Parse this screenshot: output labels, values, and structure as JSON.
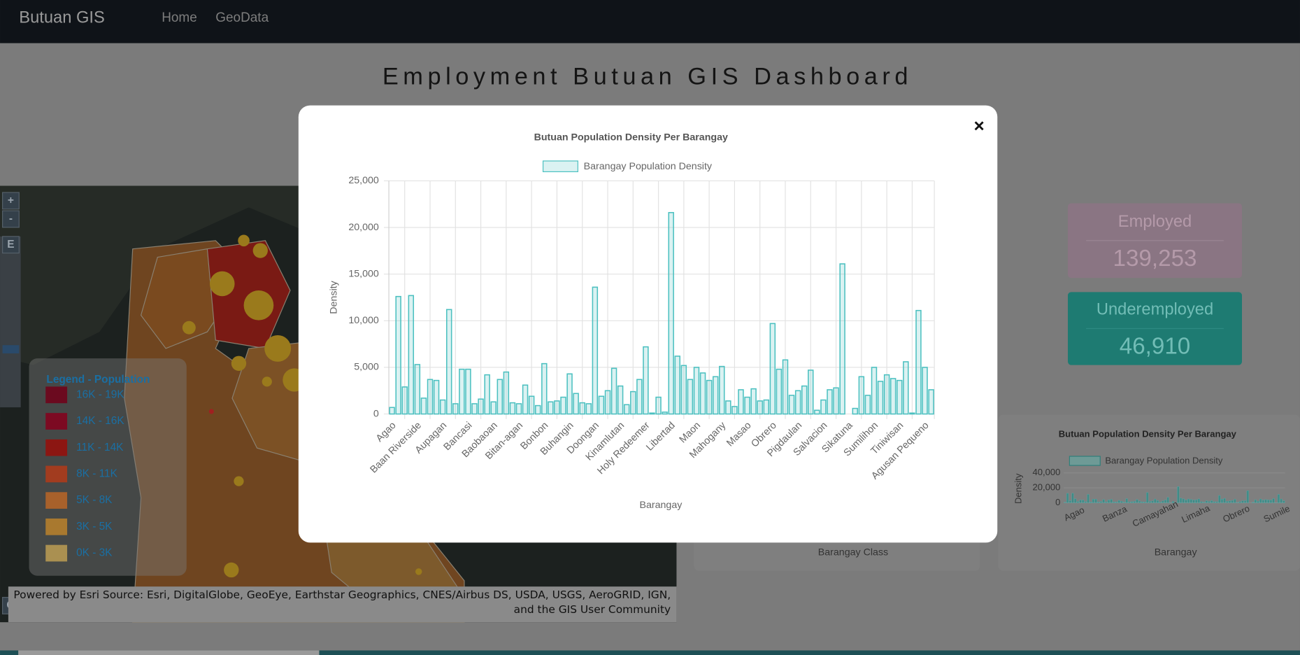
{
  "navbar": {
    "brand": "Butuan GIS",
    "links": [
      "Home",
      "GeoData"
    ]
  },
  "header": {
    "title": "Employment Butuan GIS Dashboard"
  },
  "map": {
    "controls": [
      "+",
      "-",
      "E",
      "O"
    ],
    "legend": {
      "title": "Legend - Population",
      "items": [
        {
          "label": "16K - 19K",
          "color": "#6b0a1f"
        },
        {
          "label": "14K - 16K",
          "color": "#7c0a22"
        },
        {
          "label": "11K - 14K",
          "color": "#8c1612"
        },
        {
          "label": "8K - 11K",
          "color": "#a23c1f"
        },
        {
          "label": "5K - 8K",
          "color": "#a8612b"
        },
        {
          "label": "3K - 5K",
          "color": "#a9792f"
        },
        {
          "label": "0K - 3K",
          "color": "#aa9051"
        }
      ]
    },
    "attribution": "Powered by Esri Source: Esri, DigitalGlobe, GeoEye, Earthstar Geographics, CNES/Airbus DS, USDA, USGS, AeroGRID, IGN, and the GIS User Community"
  },
  "cards": [
    {
      "label": "Employed",
      "value": "139,253"
    },
    {
      "label": "Underemployed",
      "value": "46,910"
    }
  ],
  "panels": {
    "class_chart_x_label": "Barangay Class"
  },
  "chart_data": [
    {
      "type": "bar",
      "title": "Butuan Population Density Per Barangay",
      "x_label": "Barangay",
      "y_label": "Density",
      "categories": [
        "Agao",
        null,
        null,
        null,
        "Baan Riverside",
        null,
        null,
        null,
        "Aupagan",
        null,
        null,
        null,
        "Bancasi",
        null,
        null,
        null,
        "Baobaoan",
        null,
        null,
        null,
        "Bitan-agan",
        null,
        null,
        null,
        "Bonbon",
        null,
        null,
        null,
        "Buhangin",
        null,
        null,
        null,
        "Doongan",
        null,
        null,
        null,
        "Kinamlutan",
        null,
        null,
        null,
        "Holy Redeemer",
        null,
        null,
        null,
        "Libertad",
        null,
        null,
        null,
        "Maon",
        null,
        null,
        null,
        "Mahogany",
        null,
        null,
        null,
        "Masao",
        null,
        null,
        null,
        "Obrero",
        null,
        null,
        null,
        "Pigdaulan",
        null,
        null,
        null,
        "Salvacion",
        null,
        null,
        null,
        "Sikatuna",
        null,
        null,
        null,
        "Sumilihon",
        null,
        null,
        null,
        "Tiniwisan",
        null,
        null,
        null,
        "Agusan Pequeno",
        null
      ],
      "series": [
        {
          "name": "Barangay Population Density",
          "color": "#4bc0c0",
          "fill_color": "rgba(75,192,192,0.2)",
          "values": [
            700,
            12600,
            2900,
            12700,
            5300,
            1700,
            3700,
            3600,
            1500,
            11200,
            1100,
            4800,
            4800,
            1100,
            1600,
            4200,
            1300,
            3700,
            4500,
            1200,
            1100,
            3100,
            1900,
            900,
            5400,
            1300,
            1400,
            1800,
            4300,
            2200,
            1200,
            1100,
            13600,
            1900,
            2500,
            4900,
            3000,
            1000,
            2400,
            3700,
            7200,
            100,
            1800,
            200,
            21600,
            6200,
            5200,
            3700,
            5000,
            4400,
            3600,
            4000,
            5100,
            1400,
            800,
            2600,
            1800,
            2700,
            1400,
            1500,
            9700,
            4800,
            5800,
            2000,
            2500,
            3000,
            4700,
            400,
            1500,
            2600,
            2800,
            16100,
            0,
            600,
            4000,
            2000,
            5000,
            3500,
            4200,
            3800,
            3600,
            5600,
            100,
            11100,
            5000,
            2600
          ]
        }
      ],
      "ylim": [
        0,
        25000
      ],
      "yticks": [
        0,
        {
          "value": 5000,
          "label": "5,000"
        },
        {
          "value": 10000,
          "label": "10,000"
        },
        {
          "value": 15000,
          "label": "15,000"
        },
        {
          "value": 20000,
          "label": "20,000"
        },
        {
          "value": 25000,
          "label": "25,000"
        }
      ],
      "grid": true,
      "legend": "top"
    },
    {
      "type": "bar",
      "title": "Butuan Population Density Per Barangay",
      "x_label": "Barangay",
      "y_label": "Density",
      "legend_label": "Barangay Population Density",
      "tick_labels": [
        "Agao",
        "Banza",
        "Camayahan",
        "Limaha",
        "Obrero",
        "Sumile"
      ],
      "ylim": [
        0,
        40000
      ],
      "yticks": [
        0,
        {
          "value": 20000,
          "label": "20,000"
        },
        {
          "value": 40000,
          "label": "40,000"
        }
      ],
      "grid": true
    }
  ]
}
